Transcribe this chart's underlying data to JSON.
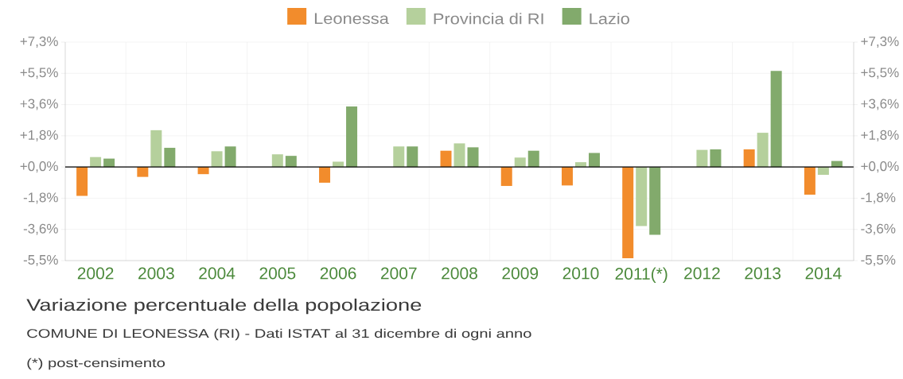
{
  "chart_data": {
    "type": "bar",
    "title": "Variazione percentuale della popolazione",
    "annotations": [
      "COMUNE DI LEONESSA (RI) - Dati ISTAT al 31 dicembre di ogni anno",
      "(*) post-censimento"
    ],
    "categories": [
      "2002",
      "2003",
      "2004",
      "2005",
      "2006",
      "2007",
      "2008",
      "2009",
      "2010",
      "2011(*)",
      "2012",
      "2013",
      "2014"
    ],
    "series": [
      {
        "name": "Leonessa",
        "color": "#f28c2c",
        "values": [
          -1.69,
          -0.58,
          -0.42,
          0,
          -0.92,
          0,
          0.95,
          -1.11,
          -1.08,
          -5.33,
          0,
          1.03,
          -1.62
        ]
      },
      {
        "name": "Provincia di RI",
        "color": "#b5d09c",
        "values": [
          0.58,
          2.15,
          0.92,
          0.74,
          0.31,
          1.2,
          1.38,
          0.55,
          0.28,
          -3.46,
          1.0,
          2.0,
          -0.46
        ]
      },
      {
        "name": "Lazio",
        "color": "#82aa6c",
        "values": [
          0.49,
          1.12,
          1.2,
          0.65,
          3.54,
          1.2,
          1.15,
          0.95,
          0.82,
          -3.97,
          1.03,
          5.62,
          0.35
        ]
      }
    ],
    "ylim": [
      -5.475,
      7.3
    ],
    "yticks": [
      {
        "value": -5.475,
        "label": "-5,5%"
      },
      {
        "value": -3.65,
        "label": "-3,6%"
      },
      {
        "value": -1.825,
        "label": "-1,8%"
      },
      {
        "value": 0,
        "label": "+0,0%"
      },
      {
        "value": 1.825,
        "label": "+1,8%"
      },
      {
        "value": 3.65,
        "label": "+3,6%"
      },
      {
        "value": 5.475,
        "label": "+5,5%"
      },
      {
        "value": 7.3,
        "label": "+7,3%"
      }
    ],
    "y2lim": [
      -5.475,
      7.3
    ],
    "y2ticks": [
      {
        "value": -5.475,
        "label": "-5,5%"
      },
      {
        "value": -3.65,
        "label": "-3,6%"
      },
      {
        "value": -1.825,
        "label": "-1,8%"
      },
      {
        "value": 0,
        "label": "+0,0%"
      },
      {
        "value": 1.825,
        "label": "+1,8%"
      },
      {
        "value": 3.65,
        "label": "+3,6%"
      },
      {
        "value": 5.475,
        "label": "+5,5%"
      },
      {
        "value": 7.3,
        "label": "+7,3%"
      }
    ],
    "ref_lines": [
      {
        "axis": "y",
        "value": 0,
        "color": "#000000"
      }
    ],
    "grid": true,
    "legend": "top"
  }
}
